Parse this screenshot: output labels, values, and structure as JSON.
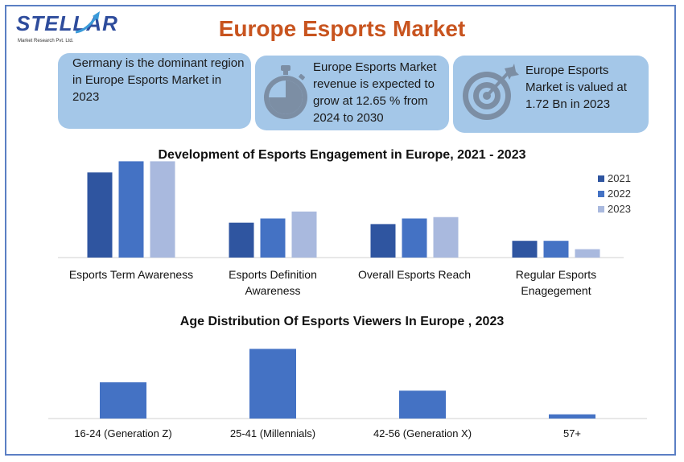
{
  "logo": {
    "word": "STELLAR",
    "sub": "Market Research Pvt. Ltd."
  },
  "title": "Europe Esports Market",
  "cards": [
    {
      "text": "Germany is the dominant region in Europe Esports Market in 2023",
      "icon": "none"
    },
    {
      "text": "Europe Esports Market revenue is expected to grow at 12.65 % from 2024 to 2030",
      "icon": "stopwatch-icon"
    },
    {
      "text": "Europe Esports Market is valued at 1.72 Bn in 2023",
      "icon": "target-icon"
    }
  ],
  "chart_data": [
    {
      "type": "bar",
      "title": "Development of Esports Engagement in Europe, 2021 - 2023",
      "categories": [
        "Esports Term Awareness",
        "Esports Definition Awareness",
        "Overall Esports Reach",
        "Regular Esports Enagegement"
      ],
      "category_lines": [
        [
          "Esports Term Awareness"
        ],
        [
          "Esports Definition",
          "Awareness"
        ],
        [
          "Overall Esports Reach"
        ],
        [
          "Regular Esports",
          "Enagegement"
        ]
      ],
      "series": [
        {
          "name": "2021",
          "color": "#2f55a0",
          "values": [
            61,
            25,
            24,
            12
          ]
        },
        {
          "name": "2022",
          "color": "#4472c4",
          "values": [
            69,
            28,
            28,
            12
          ]
        },
        {
          "name": "2023",
          "color": "#a9b9de",
          "values": [
            69,
            33,
            29,
            6
          ]
        }
      ],
      "ylim": [
        0,
        75
      ],
      "legend": "right",
      "grid": false
    },
    {
      "type": "bar",
      "title": "Age Distribution Of Esports Viewers In Europe , 2023",
      "categories": [
        "16-24 (Generation Z)",
        "25-41 (Millennials)",
        "42-56 (Generation X)",
        "57+"
      ],
      "values": [
        26,
        50,
        20,
        3
      ],
      "color": "#4472c4",
      "ylim": [
        0,
        52
      ],
      "grid": false
    }
  ]
}
